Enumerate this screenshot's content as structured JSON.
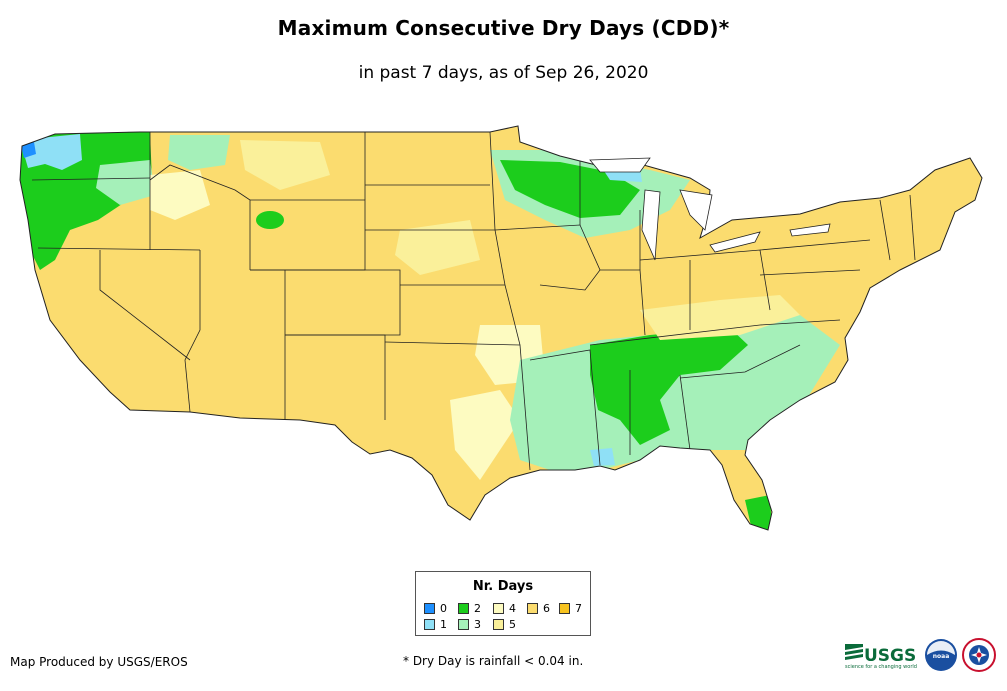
{
  "title": "Maximum Consecutive Dry Days (CDD)*",
  "subtitle": "in past 7 days, as of Sep 26, 2020",
  "legend": {
    "title": "Nr. Days",
    "items": [
      {
        "label": "0",
        "color": "#1e90ff"
      },
      {
        "label": "1",
        "color": "#8fe0f6"
      },
      {
        "label": "2",
        "color": "#1ccd1c"
      },
      {
        "label": "3",
        "color": "#a5f0b9"
      },
      {
        "label": "4",
        "color": "#fdfbc1"
      },
      {
        "label": "5",
        "color": "#faf09a"
      },
      {
        "label": "6",
        "color": "#fbdc6f"
      },
      {
        "label": "7",
        "color": "#f7c31f"
      }
    ]
  },
  "credit": "Map Produced by USGS/EROS",
  "footnote": "* Dry Day is rainfall < 0.04 in.",
  "logos": {
    "usgs_text": "USGS",
    "usgs_tagline": "science for a changing world",
    "noaa_text": "noaa"
  }
}
